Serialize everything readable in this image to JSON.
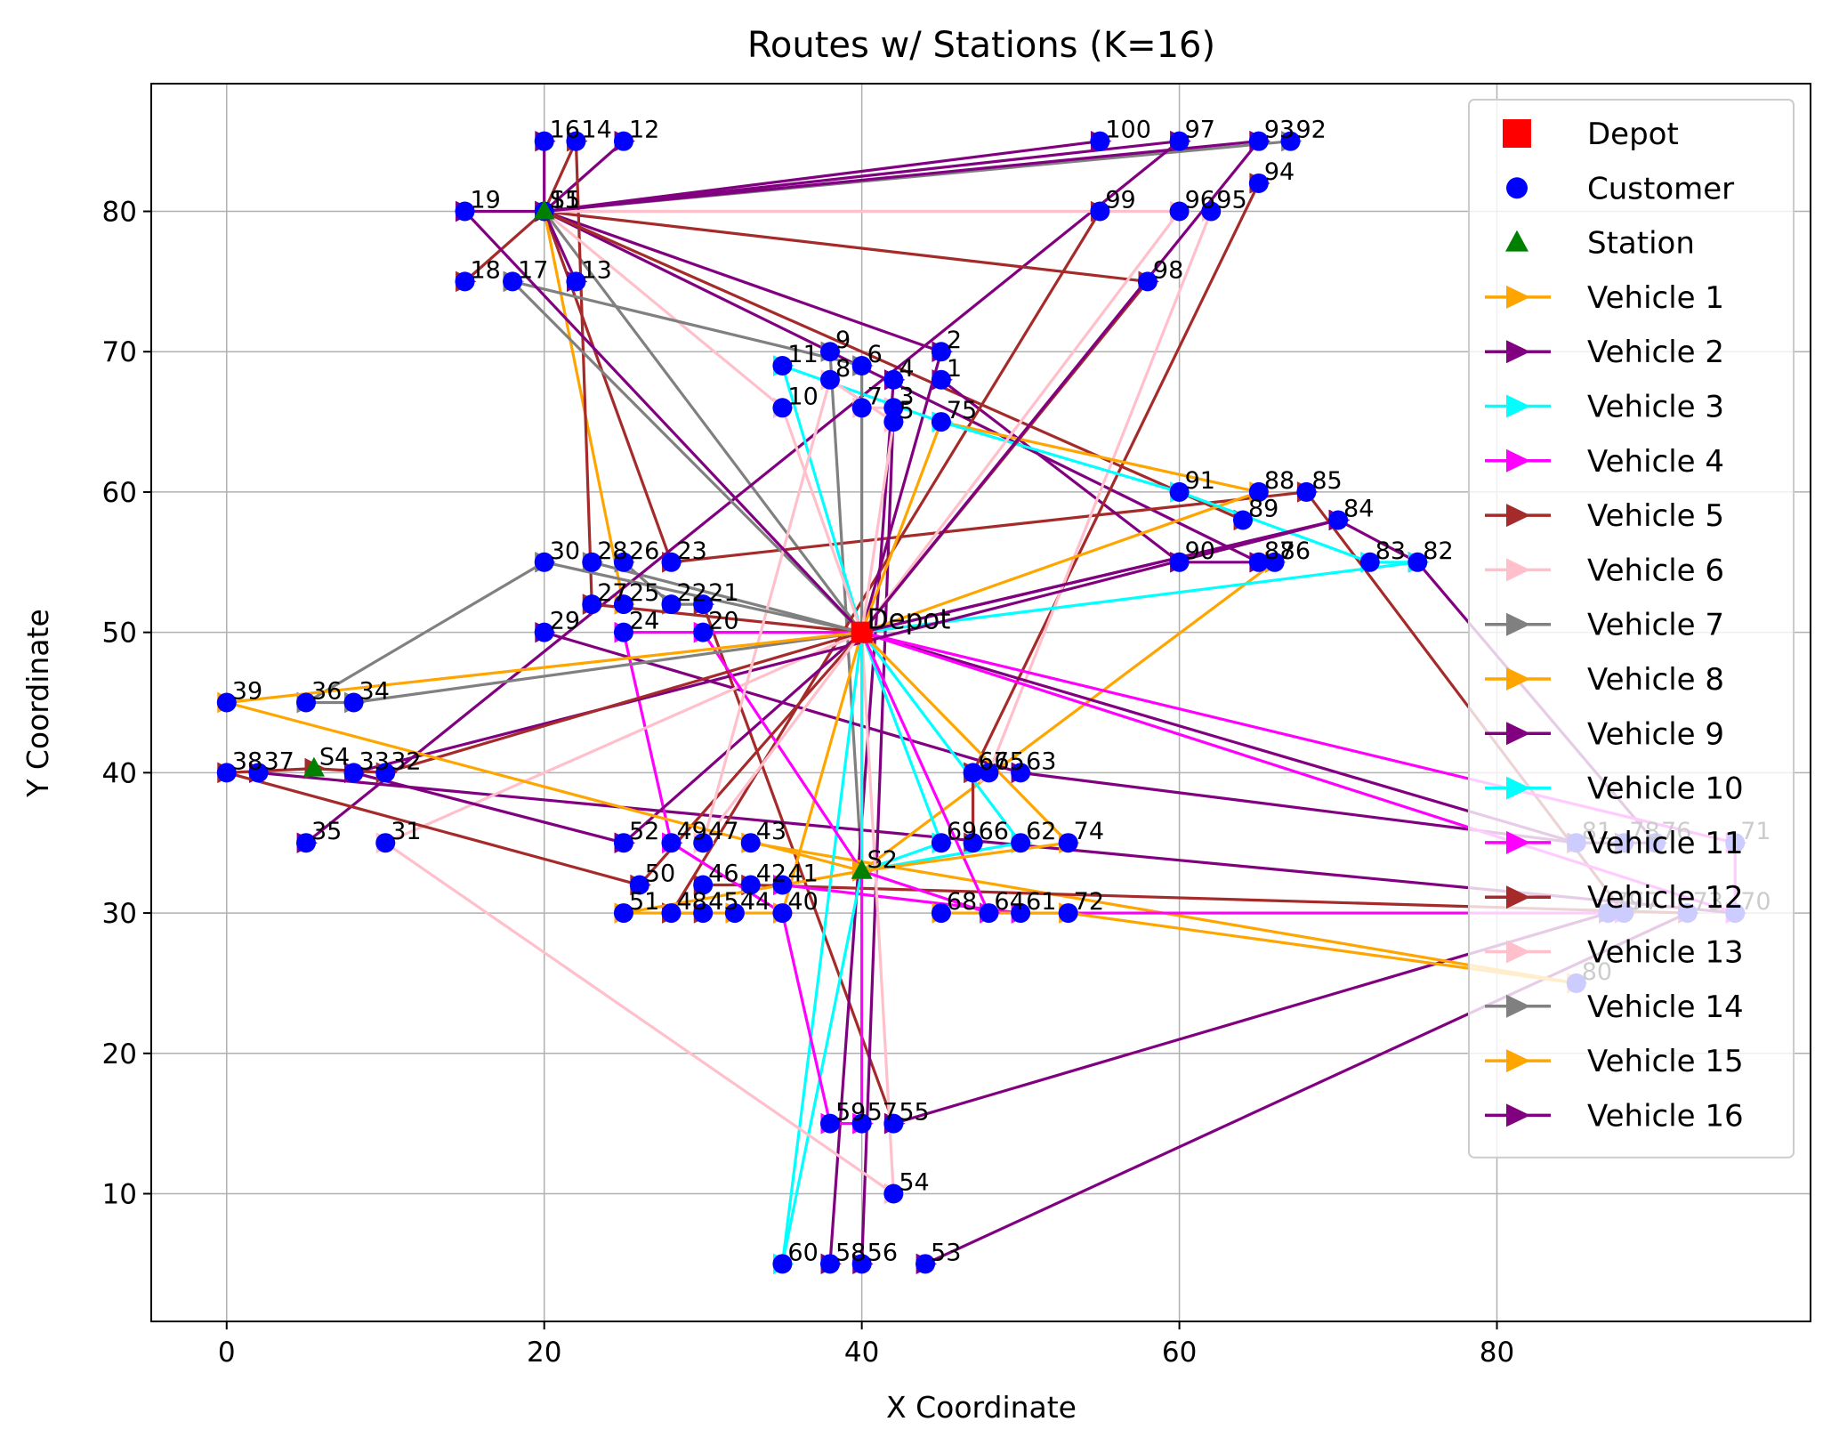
{
  "chart_data": {
    "type": "scatter",
    "title": "Routes w/ Stations (K=16)",
    "xlabel": "X Coordinate",
    "ylabel": "Y Coordinate",
    "xlim": [
      -4.75,
      99.75
    ],
    "ylim": [
      0.9,
      89.1
    ],
    "xticks": [
      0,
      20,
      40,
      60,
      80
    ],
    "yticks": [
      10,
      20,
      30,
      40,
      50,
      60,
      70,
      80
    ],
    "grid": true,
    "legend_position": "top-right",
    "depot": {
      "label": "Depot",
      "x": 40,
      "y": 50
    },
    "customers": [
      {
        "id": "1",
        "x": 45,
        "y": 68
      },
      {
        "id": "2",
        "x": 45,
        "y": 70
      },
      {
        "id": "3",
        "x": 42,
        "y": 66
      },
      {
        "id": "4",
        "x": 42,
        "y": 68
      },
      {
        "id": "5",
        "x": 42,
        "y": 65
      },
      {
        "id": "6",
        "x": 40,
        "y": 69
      },
      {
        "id": "7",
        "x": 40,
        "y": 66
      },
      {
        "id": "8",
        "x": 38,
        "y": 68
      },
      {
        "id": "9",
        "x": 38,
        "y": 70
      },
      {
        "id": "10",
        "x": 35,
        "y": 66
      },
      {
        "id": "11",
        "x": 35,
        "y": 69
      },
      {
        "id": "12",
        "x": 25,
        "y": 85
      },
      {
        "id": "13",
        "x": 22,
        "y": 75
      },
      {
        "id": "14",
        "x": 22,
        "y": 85
      },
      {
        "id": "15",
        "x": 20,
        "y": 80
      },
      {
        "id": "16",
        "x": 20,
        "y": 85
      },
      {
        "id": "17",
        "x": 18,
        "y": 75
      },
      {
        "id": "18",
        "x": 15,
        "y": 75
      },
      {
        "id": "19",
        "x": 15,
        "y": 80
      },
      {
        "id": "20",
        "x": 30,
        "y": 50
      },
      {
        "id": "21",
        "x": 30,
        "y": 52
      },
      {
        "id": "22",
        "x": 28,
        "y": 52
      },
      {
        "id": "23",
        "x": 28,
        "y": 55
      },
      {
        "id": "24",
        "x": 25,
        "y": 50
      },
      {
        "id": "25",
        "x": 25,
        "y": 52
      },
      {
        "id": "26",
        "x": 25,
        "y": 55
      },
      {
        "id": "27",
        "x": 23,
        "y": 52
      },
      {
        "id": "28",
        "x": 23,
        "y": 55
      },
      {
        "id": "29",
        "x": 20,
        "y": 50
      },
      {
        "id": "30",
        "x": 20,
        "y": 55
      },
      {
        "id": "31",
        "x": 10,
        "y": 35
      },
      {
        "id": "32",
        "x": 10,
        "y": 40
      },
      {
        "id": "33",
        "x": 8,
        "y": 40
      },
      {
        "id": "34",
        "x": 8,
        "y": 45
      },
      {
        "id": "35",
        "x": 5,
        "y": 35
      },
      {
        "id": "36",
        "x": 5,
        "y": 45
      },
      {
        "id": "37",
        "x": 2,
        "y": 40
      },
      {
        "id": "38",
        "x": 0,
        "y": 40
      },
      {
        "id": "39",
        "x": 0,
        "y": 45
      },
      {
        "id": "40",
        "x": 35,
        "y": 30
      },
      {
        "id": "41",
        "x": 35,
        "y": 32
      },
      {
        "id": "42",
        "x": 33,
        "y": 32
      },
      {
        "id": "43",
        "x": 33,
        "y": 35
      },
      {
        "id": "44",
        "x": 32,
        "y": 30
      },
      {
        "id": "45",
        "x": 30,
        "y": 30
      },
      {
        "id": "46",
        "x": 30,
        "y": 32
      },
      {
        "id": "47",
        "x": 30,
        "y": 35
      },
      {
        "id": "48",
        "x": 28,
        "y": 30
      },
      {
        "id": "49",
        "x": 28,
        "y": 35
      },
      {
        "id": "50",
        "x": 26,
        "y": 32
      },
      {
        "id": "51",
        "x": 25,
        "y": 30
      },
      {
        "id": "52",
        "x": 25,
        "y": 35
      },
      {
        "id": "53",
        "x": 44,
        "y": 5
      },
      {
        "id": "54",
        "x": 42,
        "y": 10
      },
      {
        "id": "55",
        "x": 42,
        "y": 15
      },
      {
        "id": "56",
        "x": 40,
        "y": 5
      },
      {
        "id": "57",
        "x": 40,
        "y": 15
      },
      {
        "id": "58",
        "x": 38,
        "y": 5
      },
      {
        "id": "59",
        "x": 38,
        "y": 15
      },
      {
        "id": "60",
        "x": 35,
        "y": 5
      },
      {
        "id": "61",
        "x": 50,
        "y": 30
      },
      {
        "id": "62",
        "x": 50,
        "y": 35
      },
      {
        "id": "63",
        "x": 50,
        "y": 40
      },
      {
        "id": "64",
        "x": 48,
        "y": 30
      },
      {
        "id": "65",
        "x": 48,
        "y": 40
      },
      {
        "id": "66",
        "x": 47,
        "y": 35
      },
      {
        "id": "67",
        "x": 47,
        "y": 40
      },
      {
        "id": "68",
        "x": 45,
        "y": 30
      },
      {
        "id": "69",
        "x": 45,
        "y": 35
      },
      {
        "id": "70",
        "x": 95,
        "y": 30
      },
      {
        "id": "71",
        "x": 95,
        "y": 35
      },
      {
        "id": "72",
        "x": 53,
        "y": 30
      },
      {
        "id": "73",
        "x": 92,
        "y": 30
      },
      {
        "id": "74",
        "x": 53,
        "y": 35
      },
      {
        "id": "75",
        "x": 45,
        "y": 65
      },
      {
        "id": "76",
        "x": 90,
        "y": 35
      },
      {
        "id": "77",
        "x": 88,
        "y": 30
      },
      {
        "id": "78",
        "x": 88,
        "y": 35
      },
      {
        "id": "79",
        "x": 87,
        "y": 30
      },
      {
        "id": "80",
        "x": 85,
        "y": 25
      },
      {
        "id": "81",
        "x": 85,
        "y": 35
      },
      {
        "id": "82",
        "x": 75,
        "y": 55
      },
      {
        "id": "83",
        "x": 72,
        "y": 55
      },
      {
        "id": "84",
        "x": 70,
        "y": 58
      },
      {
        "id": "85",
        "x": 68,
        "y": 60
      },
      {
        "id": "86",
        "x": 66,
        "y": 55
      },
      {
        "id": "87",
        "x": 65,
        "y": 55
      },
      {
        "id": "88",
        "x": 65,
        "y": 60
      },
      {
        "id": "89",
        "x": 64,
        "y": 58
      },
      {
        "id": "90",
        "x": 60,
        "y": 55
      },
      {
        "id": "91",
        "x": 60,
        "y": 60
      },
      {
        "id": "92",
        "x": 67,
        "y": 85
      },
      {
        "id": "93",
        "x": 65,
        "y": 85
      },
      {
        "id": "94",
        "x": 65,
        "y": 82
      },
      {
        "id": "95",
        "x": 62,
        "y": 80
      },
      {
        "id": "96",
        "x": 60,
        "y": 80
      },
      {
        "id": "97",
        "x": 60,
        "y": 85
      },
      {
        "id": "98",
        "x": 58,
        "y": 75
      },
      {
        "id": "99",
        "x": 55,
        "y": 80
      },
      {
        "id": "100",
        "x": 55,
        "y": 85
      }
    ],
    "stations": [
      {
        "id": "S1",
        "x": 20,
        "y": 80
      },
      {
        "id": "S4",
        "x": 5.5,
        "y": 40.3
      },
      {
        "id": "S2",
        "x": 40,
        "y": 33
      }
    ],
    "series": [
      {
        "name": "Vehicle 1",
        "color": "#FFA500",
        "route": [
          "D",
          "75",
          "88",
          "D"
        ]
      },
      {
        "name": "Vehicle 2",
        "color": "#800080",
        "route": [
          "D",
          "84",
          "82",
          "76",
          "78",
          "81",
          "D"
        ]
      },
      {
        "name": "Vehicle 3",
        "color": "#00FFFF",
        "route": [
          "D",
          "60",
          "S2",
          "69",
          "D",
          "11",
          "75",
          "91",
          "83",
          "82",
          "D"
        ]
      },
      {
        "name": "Vehicle 4",
        "color": "#FF00FF",
        "route": [
          "D",
          "24",
          "49",
          "40",
          "59",
          "57",
          "D",
          "71",
          "70",
          "D"
        ]
      },
      {
        "name": "Vehicle 5",
        "color": "#A52A2A",
        "route": [
          "D",
          "27",
          "14",
          "S1",
          "98",
          "D"
        ]
      },
      {
        "name": "Vehicle 6",
        "color": "#FFC0CB",
        "route": [
          "D",
          "31",
          "54",
          "D",
          "10",
          "S1",
          "96",
          "D"
        ]
      },
      {
        "name": "Vehicle 7",
        "color": "#808080",
        "route": [
          "D",
          "17",
          "6",
          "D"
        ]
      },
      {
        "name": "Vehicle 8",
        "color": "#FFA500",
        "route": [
          "D",
          "S2",
          "51",
          "44",
          "40",
          "D"
        ]
      },
      {
        "name": "Vehicle 9",
        "color": "#800080",
        "route": [
          "D",
          "52",
          "33",
          "84",
          "D"
        ]
      },
      {
        "name": "Vehicle 10",
        "color": "#00FFFF",
        "route": [
          "D",
          "S2",
          "62",
          "D"
        ]
      },
      {
        "name": "Vehicle 11",
        "color": "#FF00FF",
        "route": [
          "D",
          "20",
          "S2",
          "64",
          "D"
        ]
      },
      {
        "name": "Vehicle 12",
        "color": "#A52A2A",
        "route": [
          "D",
          "50",
          "38",
          "S4",
          "32",
          "D"
        ]
      },
      {
        "name": "Vehicle 13",
        "color": "#FFC0CB",
        "route": [
          "D",
          "47",
          "8",
          "5",
          "D"
        ]
      },
      {
        "name": "Vehicle 14",
        "color": "#808080",
        "route": [
          "D",
          "30",
          "36",
          "34",
          "D"
        ]
      },
      {
        "name": "Vehicle 15",
        "color": "#FFA500",
        "route": [
          "D",
          "39",
          "S2",
          "74",
          "D"
        ]
      },
      {
        "name": "Vehicle 16",
        "color": "#800080",
        "route": [
          "D",
          "19",
          "S1",
          "93",
          "D"
        ]
      }
    ],
    "extra_segments": [
      {
        "color": "#800080",
        "from": "S1",
        "to": "100"
      },
      {
        "color": "#800080",
        "from": "S1",
        "to": "97"
      },
      {
        "color": "#808080",
        "from": "S1",
        "to": "92"
      },
      {
        "color": "#FFC0CB",
        "from": "S1",
        "to": "99"
      },
      {
        "color": "#A52A2A",
        "from": "18",
        "to": "S1"
      },
      {
        "color": "#800080",
        "from": "16",
        "to": "S1"
      },
      {
        "color": "#800080",
        "from": "12",
        "to": "S1"
      },
      {
        "color": "#A52A2A",
        "from": "S1",
        "to": "23"
      },
      {
        "color": "#800080",
        "from": "S1",
        "to": "2"
      },
      {
        "color": "#808080",
        "from": "S1",
        "to": "D"
      },
      {
        "color": "#FFA500",
        "from": "S1",
        "to": "25"
      },
      {
        "color": "#800080",
        "from": "13",
        "to": "S1"
      },
      {
        "color": "#800080",
        "from": "S1",
        "to": "87"
      },
      {
        "color": "#A52A2A",
        "from": "S1",
        "to": "89"
      },
      {
        "color": "#A52A2A",
        "from": "23",
        "to": "85"
      },
      {
        "color": "#A52A2A",
        "from": "85",
        "to": "77"
      },
      {
        "color": "#800080",
        "from": "1",
        "to": "90"
      },
      {
        "color": "#800080",
        "from": "90",
        "to": "86"
      },
      {
        "color": "#808080",
        "from": "9",
        "to": "S2"
      },
      {
        "color": "#808080",
        "from": "28",
        "to": "D"
      },
      {
        "color": "#808080",
        "from": "26",
        "to": "22"
      },
      {
        "color": "#808080",
        "from": "22",
        "to": "21"
      },
      {
        "color": "#A52A2A",
        "from": "21",
        "to": "55"
      },
      {
        "color": "#800080",
        "from": "55",
        "to": "79"
      },
      {
        "color": "#800080",
        "from": "53",
        "to": "73"
      },
      {
        "color": "#800080",
        "from": "58",
        "to": "4"
      },
      {
        "color": "#800080",
        "from": "56",
        "to": "3"
      },
      {
        "color": "#800080",
        "from": "35",
        "to": "97"
      },
      {
        "color": "#800080",
        "from": "37",
        "to": "70"
      },
      {
        "color": "#A52A2A",
        "from": "45",
        "to": "48"
      },
      {
        "color": "#A52A2A",
        "from": "48",
        "to": "99"
      },
      {
        "color": "#FFA500",
        "from": "43",
        "to": "80"
      },
      {
        "color": "#FFA500",
        "from": "S2",
        "to": "86"
      },
      {
        "color": "#A52A2A",
        "from": "46",
        "to": "42"
      },
      {
        "color": "#A52A2A",
        "from": "42",
        "to": "73"
      },
      {
        "color": "#800080",
        "from": "29",
        "to": "63"
      },
      {
        "color": "#800080",
        "from": "63",
        "to": "81"
      },
      {
        "color": "#FF00FF",
        "from": "41",
        "to": "61"
      },
      {
        "color": "#FF00FF",
        "from": "61",
        "to": "77"
      },
      {
        "color": "#A52A2A",
        "from": "66",
        "to": "67"
      },
      {
        "color": "#A52A2A",
        "from": "67",
        "to": "94"
      },
      {
        "color": "#FFA500",
        "from": "68",
        "to": "72"
      },
      {
        "color": "#FFA500",
        "from": "72",
        "to": "80"
      },
      {
        "color": "#FFC0CB",
        "from": "65",
        "to": "95"
      },
      {
        "color": "#FFC0CB",
        "from": "7",
        "to": "3"
      },
      {
        "color": "#800080",
        "from": "2",
        "to": "D"
      }
    ],
    "legend": [
      {
        "label": "Depot",
        "kind": "depot",
        "color": "#FF0000"
      },
      {
        "label": "Customer",
        "kind": "customer",
        "color": "#0000FF"
      },
      {
        "label": "Station",
        "kind": "station",
        "color": "#008000"
      },
      {
        "label": "Vehicle 1",
        "kind": "line",
        "color": "#FFA500"
      },
      {
        "label": "Vehicle 2",
        "kind": "line",
        "color": "#800080"
      },
      {
        "label": "Vehicle 3",
        "kind": "line",
        "color": "#00FFFF"
      },
      {
        "label": "Vehicle 4",
        "kind": "line",
        "color": "#FF00FF"
      },
      {
        "label": "Vehicle 5",
        "kind": "line",
        "color": "#A52A2A"
      },
      {
        "label": "Vehicle 6",
        "kind": "line",
        "color": "#FFC0CB"
      },
      {
        "label": "Vehicle 7",
        "kind": "line",
        "color": "#808080"
      },
      {
        "label": "Vehicle 8",
        "kind": "line",
        "color": "#FFA500"
      },
      {
        "label": "Vehicle 9",
        "kind": "line",
        "color": "#800080"
      },
      {
        "label": "Vehicle 10",
        "kind": "line",
        "color": "#00FFFF"
      },
      {
        "label": "Vehicle 11",
        "kind": "line",
        "color": "#FF00FF"
      },
      {
        "label": "Vehicle 12",
        "kind": "line",
        "color": "#A52A2A"
      },
      {
        "label": "Vehicle 13",
        "kind": "line",
        "color": "#FFC0CB"
      },
      {
        "label": "Vehicle 14",
        "kind": "line",
        "color": "#808080"
      },
      {
        "label": "Vehicle 15",
        "kind": "line",
        "color": "#FFA500"
      },
      {
        "label": "Vehicle 16",
        "kind": "line",
        "color": "#800080"
      }
    ]
  }
}
